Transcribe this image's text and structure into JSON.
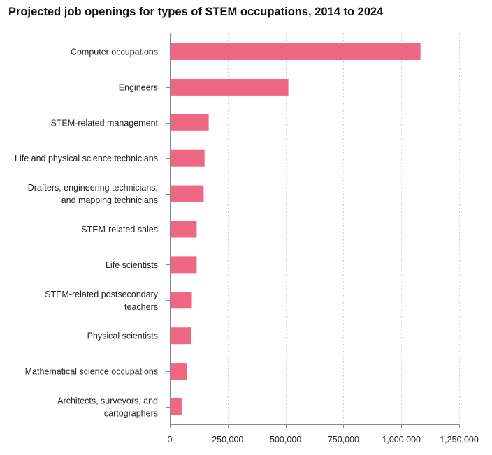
{
  "chart_data": {
    "type": "bar",
    "orientation": "horizontal",
    "title": "Projected job openings for types of STEM occupations, 2014 to 2024",
    "categories": [
      "Computer occupations",
      "Engineers",
      "STEM-related management",
      "Life and physical science technicians",
      "Drafters, engineering technicians, and mapping technicians",
      "STEM-related sales",
      "Life scientists",
      "STEM-related postsecondary teachers",
      "Physical scientists",
      "Mathematical science occupations",
      "Architects, surveyors, and cartographers"
    ],
    "category_lines": [
      [
        "Computer occupations"
      ],
      [
        "Engineers"
      ],
      [
        "STEM-related management"
      ],
      [
        "Life and physical science technicians"
      ],
      [
        "Drafters, engineering technicians,",
        "and mapping technicians"
      ],
      [
        "STEM-related sales"
      ],
      [
        "Life scientists"
      ],
      [
        "STEM-related postsecondary",
        "teachers"
      ],
      [
        "Physical scientists"
      ],
      [
        "Mathematical science occupations"
      ],
      [
        "Architects, surveyors, and",
        "cartographers"
      ]
    ],
    "values": [
      1083000,
      512000,
      168000,
      150000,
      146000,
      116000,
      116000,
      95000,
      92000,
      73000,
      51000
    ],
    "xlim": [
      0,
      1250000
    ],
    "ticks": [
      0,
      250000,
      500000,
      750000,
      1000000,
      1250000
    ],
    "tick_labels": [
      "0",
      "250,000",
      "500,000",
      "750,000",
      "1,000,000",
      "1,250,000"
    ],
    "grid": true,
    "xlabel": "",
    "ylabel": "",
    "bar_color": "#ee6883",
    "grid_color": "#c8c8c8",
    "axis_color": "#888888"
  }
}
